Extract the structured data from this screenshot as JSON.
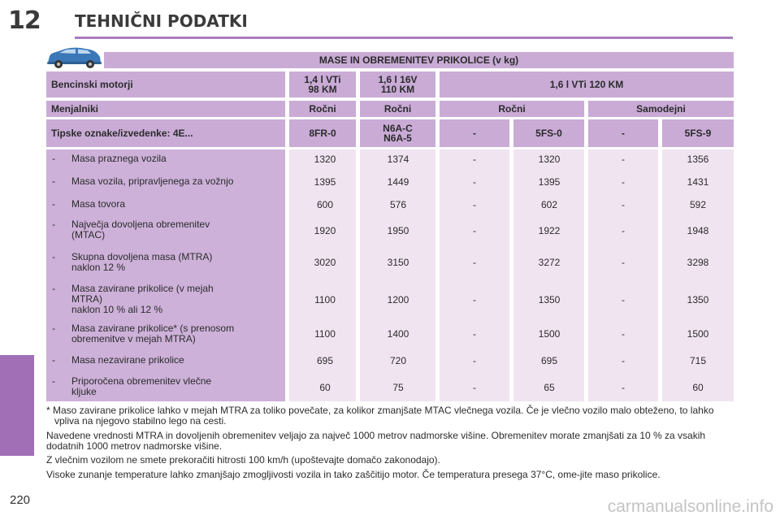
{
  "header": {
    "chapter": "12",
    "title": "TEHNIČNI PODATKI"
  },
  "page": {
    "number": "220",
    "watermark": "carmanualsonline.info"
  },
  "table": {
    "title": "MASE IN OBREMENITEV PRIKOLICE (v kg)",
    "engine_label": "Bencinski motorji",
    "engines": [
      "1,4 l VTi\n98 KM",
      "1,6 l 16V\n110 KM",
      "1,6 l VTi 120 KM"
    ],
    "gearbox_label": "Menjalniki",
    "gearboxes": [
      "Ročni",
      "Ročni",
      "Ročni",
      "Samodejni"
    ],
    "type_label": "Tipske oznake/izvedenke: 4E...",
    "types": [
      "8FR-0",
      "N6A-C\nN6A-5",
      "-",
      "5FS-0",
      "-",
      "5FS-9"
    ],
    "rows": [
      {
        "dash": "-",
        "label": "Masa praznega vozila",
        "values": [
          "1320",
          "1374",
          "-",
          "1320",
          "-",
          "1356"
        ]
      },
      {
        "dash": "-",
        "label": "Masa vozila, pripravljenega za vožnjo",
        "values": [
          "1395",
          "1449",
          "-",
          "1395",
          "-",
          "1431"
        ]
      },
      {
        "dash": "-",
        "label": "Masa tovora",
        "values": [
          "600",
          "576",
          "-",
          "602",
          "-",
          "592"
        ]
      },
      {
        "dash": "-",
        "label": "Največja dovoljena obremenitev\n(MTAC)",
        "values": [
          "1920",
          "1950",
          "-",
          "1922",
          "-",
          "1948"
        ]
      },
      {
        "dash": "-",
        "label": "Skupna dovoljena masa (MTRA)\nnaklon 12 %",
        "values": [
          "3020",
          "3150",
          "-",
          "3272",
          "-",
          "3298"
        ]
      },
      {
        "dash": "-",
        "label": "Masa zavirane prikolice (v mejah\nMTRA)\nnaklon 10 % ali 12 %",
        "values": [
          "1100",
          "1200",
          "-",
          "1350",
          "-",
          "1350"
        ]
      },
      {
        "dash": "-",
        "label": "Masa zavirane prikolice* (s prenosom\nobremenitve v mejah MTRA)",
        "values": [
          "1100",
          "1400",
          "-",
          "1500",
          "-",
          "1500"
        ]
      },
      {
        "dash": "-",
        "label": "Masa nezavirane prikolice",
        "values": [
          "695",
          "720",
          "-",
          "695",
          "-",
          "715"
        ]
      },
      {
        "dash": "-",
        "label": "Priporočena obremenitev vlečne\nkljuke",
        "values": [
          "60",
          "75",
          "-",
          "65",
          "-",
          "60"
        ]
      }
    ]
  },
  "notes": {
    "footnote": "* Maso zavirane prikolice lahko v mejah MTRA za toliko povečate, za kolikor zmanjšate MTAC vlečnega vozila. Če je vlečno vozilo malo obteženo, to lahko vpliva na njegovo stabilno lego na cesti.",
    "p1": "Navedene vrednosti MTRA in dovoljenih obremenitev veljajo za največ 1000 metrov nadmorske višine. Obremenitev morate zmanjšati za 10 % za vsakih dodatnih 1000 metrov nadmorske višine.",
    "p2": "Z vlečnim vozilom ne smete prekoračiti hitrosti 100 km/h (upoštevajte domačo zakonodajo).",
    "p3": "Visoke zunanje temperature lahko zmanjšajo zmogljivosti vozila in tako zaščitijo motor. Če temperatura presega 37°C, ome-jite maso prikolice."
  },
  "colors": {
    "accent": "#a06fb5",
    "header_cell": "#c9abd6",
    "label_column": "#cdb1d9",
    "data_cell": "#f1e4f1"
  },
  "icons": {
    "vehicle": "car-icon"
  }
}
